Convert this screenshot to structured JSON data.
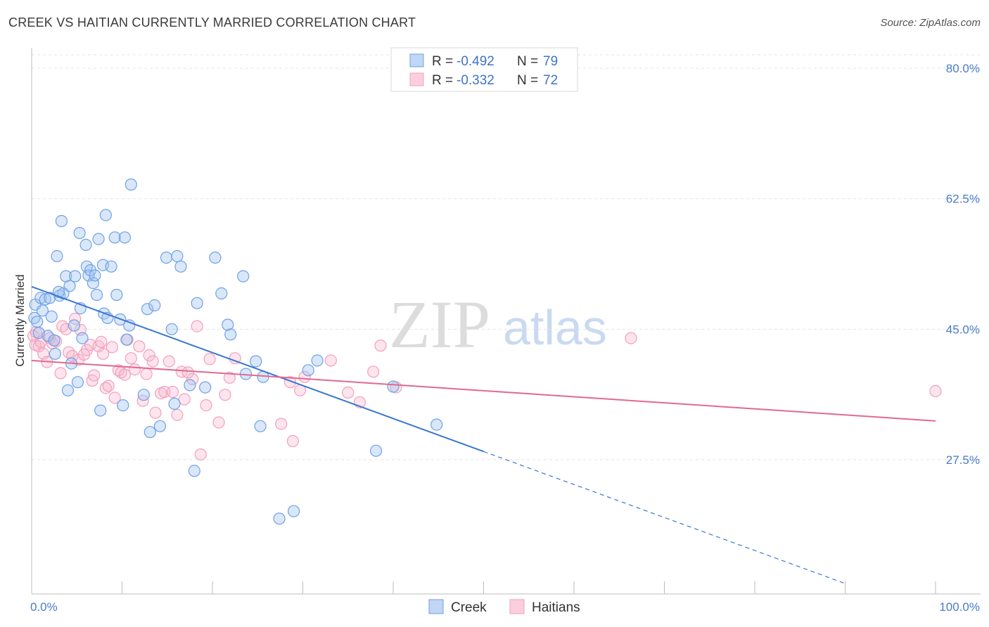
{
  "title": "CREEK VS HAITIAN CURRENTLY MARRIED CORRELATION CHART",
  "source": "Source: ZipAtlas.com",
  "watermark": {
    "zip": "ZIP",
    "atlas": "atlas"
  },
  "chart_data": {
    "type": "scatter",
    "ylabel": "Currently Married",
    "xlim": [
      0,
      100
    ],
    "ylim": [
      10,
      82.5
    ],
    "y_ticks": [
      27.5,
      45.0,
      62.5,
      80.0
    ],
    "y_tick_labels": [
      "27.5%",
      "45.0%",
      "62.5%",
      "80.0%"
    ],
    "x_tick_labels": [
      "0.0%",
      "100.0%"
    ],
    "grid": true,
    "legend_position": "top-center",
    "colors": {
      "creek": "#6fa1e6",
      "creek_line": "#3a76d0",
      "haitians": "#f2a0bd",
      "haitians_line": "#e2698f"
    },
    "legend": [
      {
        "name": "Creek",
        "r_label": "R =",
        "r_value": "-0.492",
        "n_label": "N =",
        "n_value": "79"
      },
      {
        "name": "Haitians",
        "r_label": "R =",
        "r_value": "-0.332",
        "n_label": "N =",
        "n_value": "72"
      }
    ],
    "series": [
      {
        "name": "Creek",
        "trend": {
          "x": [
            0,
            50
          ],
          "y": [
            50.7,
            28.6
          ],
          "dashed_to": [
            90,
            10.9
          ]
        },
        "points": [
          [
            0.3,
            46.5
          ],
          [
            0.4,
            48.3
          ],
          [
            0.6,
            46.0
          ],
          [
            0.8,
            44.5
          ],
          [
            1.0,
            49.2
          ],
          [
            1.2,
            47.5
          ],
          [
            1.5,
            49.0
          ],
          [
            1.8,
            44.1
          ],
          [
            2.0,
            49.2
          ],
          [
            2.2,
            46.7
          ],
          [
            2.5,
            43.5
          ],
          [
            2.6,
            41.7
          ],
          [
            2.8,
            54.8
          ],
          [
            3.1,
            49.5
          ],
          [
            3.3,
            59.5
          ],
          [
            3.5,
            49.8
          ],
          [
            3.8,
            52.1
          ],
          [
            4.0,
            36.8
          ],
          [
            4.2,
            50.8
          ],
          [
            4.4,
            40.4
          ],
          [
            4.7,
            45.5
          ],
          [
            4.8,
            52.1
          ],
          [
            5.1,
            37.9
          ],
          [
            5.3,
            57.9
          ],
          [
            5.4,
            47.8
          ],
          [
            5.6,
            43.8
          ],
          [
            6.0,
            56.3
          ],
          [
            6.1,
            53.4
          ],
          [
            6.3,
            52.2
          ],
          [
            6.5,
            52.9
          ],
          [
            6.8,
            51.2
          ],
          [
            7.0,
            52.2
          ],
          [
            7.2,
            49.6
          ],
          [
            7.4,
            57.1
          ],
          [
            7.6,
            34.1
          ],
          [
            7.9,
            53.6
          ],
          [
            8.0,
            47.1
          ],
          [
            8.2,
            60.3
          ],
          [
            8.4,
            46.5
          ],
          [
            8.8,
            53.4
          ],
          [
            9.2,
            57.3
          ],
          [
            9.4,
            49.6
          ],
          [
            9.8,
            46.3
          ],
          [
            10.1,
            34.8
          ],
          [
            10.3,
            57.3
          ],
          [
            10.5,
            43.6
          ],
          [
            10.8,
            45.5
          ],
          [
            11.0,
            64.4
          ],
          [
            12.4,
            36.2
          ],
          [
            12.8,
            47.7
          ],
          [
            13.1,
            31.2
          ],
          [
            13.6,
            48.2
          ],
          [
            14.2,
            32.0
          ],
          [
            14.9,
            54.6
          ],
          [
            15.5,
            45.0
          ],
          [
            15.8,
            35.0
          ],
          [
            16.1,
            54.8
          ],
          [
            16.5,
            53.4
          ],
          [
            17.5,
            37.5
          ],
          [
            18.0,
            26.0
          ],
          [
            18.3,
            48.5
          ],
          [
            19.2,
            37.2
          ],
          [
            20.3,
            54.6
          ],
          [
            21.0,
            49.8
          ],
          [
            21.7,
            45.6
          ],
          [
            22.0,
            44.3
          ],
          [
            23.4,
            52.1
          ],
          [
            23.7,
            39.0
          ],
          [
            24.8,
            40.7
          ],
          [
            25.3,
            32.0
          ],
          [
            25.6,
            38.6
          ],
          [
            27.4,
            19.6
          ],
          [
            29.0,
            20.6
          ],
          [
            30.6,
            39.5
          ],
          [
            31.6,
            40.8
          ],
          [
            38.1,
            28.7
          ],
          [
            40.0,
            37.3
          ],
          [
            44.8,
            32.2
          ],
          [
            3.0,
            50.0
          ]
        ]
      },
      {
        "name": "Haitians",
        "trend": {
          "x": [
            0,
            100
          ],
          "y": [
            40.8,
            32.7
          ]
        },
        "points": [
          [
            0.2,
            44.1
          ],
          [
            0.4,
            42.9
          ],
          [
            0.5,
            44.6
          ],
          [
            0.8,
            42.7
          ],
          [
            1.0,
            43.3
          ],
          [
            1.3,
            41.7
          ],
          [
            1.7,
            40.6
          ],
          [
            2.0,
            43.8
          ],
          [
            2.3,
            43.1
          ],
          [
            2.7,
            43.4
          ],
          [
            3.2,
            39.1
          ],
          [
            3.4,
            45.4
          ],
          [
            3.8,
            45.0
          ],
          [
            4.1,
            41.9
          ],
          [
            4.5,
            41.4
          ],
          [
            4.8,
            46.4
          ],
          [
            5.2,
            40.9
          ],
          [
            5.4,
            44.9
          ],
          [
            5.8,
            41.6
          ],
          [
            6.1,
            42.2
          ],
          [
            6.5,
            42.9
          ],
          [
            6.7,
            38.1
          ],
          [
            6.9,
            38.8
          ],
          [
            7.4,
            42.7
          ],
          [
            7.7,
            43.3
          ],
          [
            7.9,
            41.7
          ],
          [
            8.2,
            37.1
          ],
          [
            8.5,
            37.4
          ],
          [
            8.9,
            42.6
          ],
          [
            9.2,
            35.8
          ],
          [
            9.6,
            39.5
          ],
          [
            9.9,
            39.2
          ],
          [
            10.3,
            38.9
          ],
          [
            10.6,
            43.6
          ],
          [
            11.0,
            41.1
          ],
          [
            11.4,
            39.6
          ],
          [
            11.9,
            42.7
          ],
          [
            12.3,
            35.4
          ],
          [
            12.7,
            39.0
          ],
          [
            13.0,
            41.5
          ],
          [
            13.4,
            40.7
          ],
          [
            13.7,
            33.8
          ],
          [
            14.3,
            36.4
          ],
          [
            14.7,
            36.6
          ],
          [
            15.2,
            40.7
          ],
          [
            15.6,
            36.6
          ],
          [
            16.1,
            33.5
          ],
          [
            16.6,
            39.3
          ],
          [
            16.9,
            35.6
          ],
          [
            17.3,
            39.2
          ],
          [
            17.8,
            38.3
          ],
          [
            18.3,
            45.4
          ],
          [
            18.7,
            28.2
          ],
          [
            19.3,
            34.8
          ],
          [
            19.7,
            41.0
          ],
          [
            20.7,
            32.5
          ],
          [
            21.4,
            36.2
          ],
          [
            21.9,
            38.5
          ],
          [
            22.5,
            41.1
          ],
          [
            27.6,
            32.3
          ],
          [
            28.6,
            37.9
          ],
          [
            28.9,
            30.0
          ],
          [
            29.7,
            36.8
          ],
          [
            30.2,
            38.6
          ],
          [
            33.1,
            40.8
          ],
          [
            35.0,
            36.5
          ],
          [
            36.3,
            35.2
          ],
          [
            37.8,
            39.3
          ],
          [
            38.6,
            42.8
          ],
          [
            40.3,
            37.2
          ],
          [
            66.3,
            43.8
          ],
          [
            100.0,
            36.7
          ]
        ]
      }
    ]
  }
}
